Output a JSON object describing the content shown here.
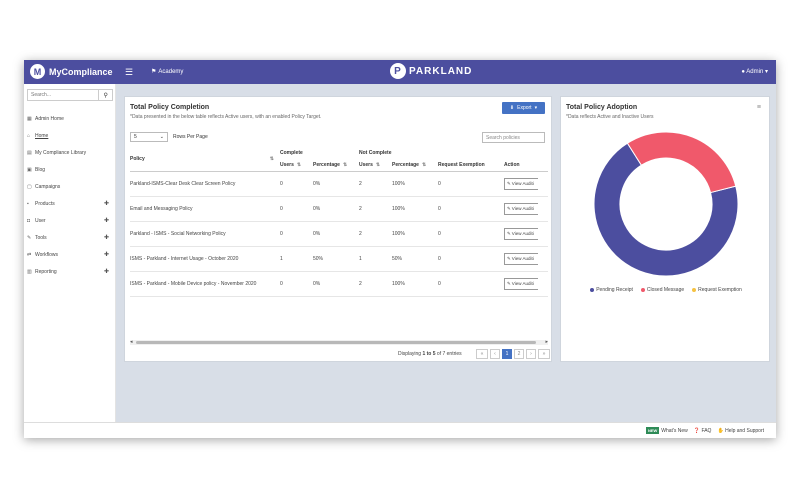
{
  "header": {
    "app_name": "MyCompliance",
    "brand_initial": "M",
    "academy_label": "Academy",
    "center_logo": "PARKLAND",
    "center_logo_initial": "P",
    "user_label": "Admin"
  },
  "sidebar": {
    "search_placeholder": "Search...",
    "items": [
      {
        "label": "Admin Home",
        "icon": "calendar-icon",
        "glyph": "▦",
        "has_plus": false
      },
      {
        "label": "Home",
        "icon": "home-icon",
        "glyph": "⌂",
        "has_plus": false,
        "active": true
      },
      {
        "label": "My Compliance Library",
        "icon": "library-icon",
        "glyph": "▤",
        "has_plus": false
      },
      {
        "label": "Blog",
        "icon": "blog-icon",
        "glyph": "▣",
        "has_plus": false
      },
      {
        "label": "Campaigns",
        "icon": "campaign-icon",
        "glyph": "▢",
        "has_plus": false
      },
      {
        "label": "Products",
        "icon": "products-icon",
        "glyph": "▪",
        "has_plus": true
      },
      {
        "label": "User",
        "icon": "user-icon",
        "glyph": "◘",
        "has_plus": true
      },
      {
        "label": "Tools",
        "icon": "tools-icon",
        "glyph": "✎",
        "has_plus": true
      },
      {
        "label": "Workflows",
        "icon": "workflow-icon",
        "glyph": "⇄",
        "has_plus": true
      },
      {
        "label": "Reporting",
        "icon": "reporting-icon",
        "glyph": "▥",
        "has_plus": true
      }
    ]
  },
  "policy_card": {
    "title": "Total Policy Completion",
    "subtitle": "*Data presented in the below table reflects Active users, with an enabled Policy Target.",
    "export_label": "Export",
    "rows_value": "5",
    "rows_label": "Rows Per Page",
    "search_placeholder": "Search policies",
    "group_complete": "Complete",
    "group_not_complete": "Not Complete",
    "columns": {
      "policy": "Policy",
      "users": "Users",
      "percentage": "Percentage",
      "request_exemption": "Request Exemption",
      "action": "Action"
    },
    "view_label": "View Auditi",
    "rows": [
      {
        "policy": "Parkland-ISMS-Clear Desk Clear Screen Policy",
        "c_users": "0",
        "c_pct": "0%",
        "n_users": "2",
        "n_pct": "100%",
        "exempt": "0"
      },
      {
        "policy": "Email and Messaging Policy",
        "c_users": "0",
        "c_pct": "0%",
        "n_users": "2",
        "n_pct": "100%",
        "exempt": "0"
      },
      {
        "policy": "Parkland - ISMS - Social Networking Policy",
        "c_users": "0",
        "c_pct": "0%",
        "n_users": "2",
        "n_pct": "100%",
        "exempt": "0"
      },
      {
        "policy": "ISMS - Parkland - Internet Usage - October 2020",
        "c_users": "1",
        "c_pct": "50%",
        "n_users": "1",
        "n_pct": "50%",
        "exempt": "0"
      },
      {
        "policy": "ISMS - Parkland - Mobile Device policy - November 2020",
        "c_users": "0",
        "c_pct": "0%",
        "n_users": "2",
        "n_pct": "100%",
        "exempt": "0"
      }
    ],
    "pager": {
      "prefix": "Displaying ",
      "range": "1 to 5",
      "suffix": " of 7 entries",
      "pages": [
        "«",
        "‹",
        "1",
        "2",
        "›",
        "»"
      ],
      "active_page": "1"
    }
  },
  "adoption_card": {
    "title": "Total Policy Adoption",
    "subtitle": "*Data reflects Active and Inactive Users",
    "menu_icon": "hamburger-menu-icon"
  },
  "chart_data": {
    "type": "pie",
    "donut": true,
    "categories": [
      "Pending Receipt",
      "Closed Message",
      "Request Exemption"
    ],
    "values": [
      70,
      30,
      0
    ],
    "colors": [
      "#4c4e9f",
      "#f0596b",
      "#f5c242"
    ],
    "legend_position": "bottom"
  },
  "footer": {
    "new_badge": "NEW",
    "whats_new": "What's New",
    "faq": "FAQ",
    "help": "Help and Support"
  }
}
